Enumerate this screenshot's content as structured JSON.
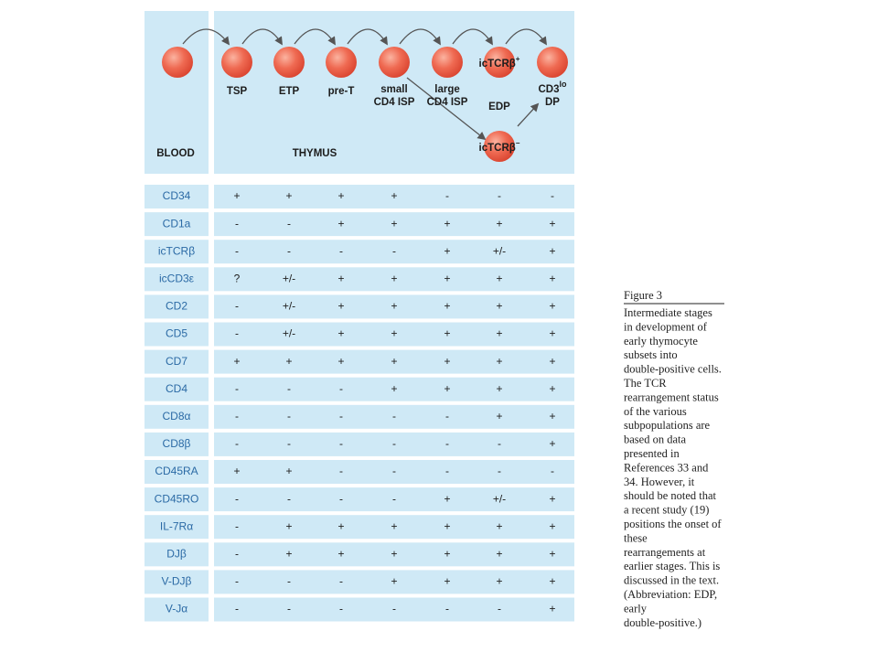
{
  "diagram": {
    "cells": [
      {
        "label": null
      },
      {
        "label": "TSP"
      },
      {
        "label": "ETP"
      },
      {
        "label": "pre-T"
      },
      {
        "label": [
          "small",
          "CD4 ISP"
        ]
      },
      {
        "label": [
          "large",
          "CD4 ISP"
        ]
      },
      {
        "label": "EDP",
        "inner": "icTCRβ",
        "inner_sup": "+"
      },
      {
        "label": [
          "CD3",
          "DP"
        ],
        "label_sup": "lo"
      },
      {
        "inner": "icTCRβ",
        "inner_sup": "−"
      }
    ],
    "blood": "BLOOD",
    "thymus": "THYMUS"
  },
  "table": {
    "rows": [
      {
        "marker": "CD34",
        "values": [
          "+",
          "+",
          "+",
          "+",
          "-",
          "-",
          "-"
        ]
      },
      {
        "marker": "CD1a",
        "values": [
          "-",
          "-",
          "+",
          "+",
          "+",
          "+",
          "+"
        ]
      },
      {
        "marker": "icTCRβ",
        "values": [
          "-",
          "-",
          "-",
          "-",
          "+",
          "+/-",
          "+"
        ]
      },
      {
        "marker": "icCD3ε",
        "values": [
          "?",
          "+/-",
          "+",
          "+",
          "+",
          "+",
          "+"
        ]
      },
      {
        "marker": "CD2",
        "values": [
          "-",
          "+/-",
          "+",
          "+",
          "+",
          "+",
          "+"
        ]
      },
      {
        "marker": "CD5",
        "values": [
          "-",
          "+/-",
          "+",
          "+",
          "+",
          "+",
          "+"
        ]
      },
      {
        "marker": "CD7",
        "values": [
          "+",
          "+",
          "+",
          "+",
          "+",
          "+",
          "+"
        ]
      },
      {
        "marker": "CD4",
        "values": [
          "-",
          "-",
          "-",
          "+",
          "+",
          "+",
          "+"
        ]
      },
      {
        "marker": "CD8α",
        "values": [
          "-",
          "-",
          "-",
          "-",
          "-",
          "+",
          "+"
        ]
      },
      {
        "marker": "CD8β",
        "values": [
          "-",
          "-",
          "-",
          "-",
          "-",
          "-",
          "+"
        ]
      },
      {
        "marker": "CD45RA",
        "values": [
          "+",
          "+",
          "-",
          "-",
          "-",
          "-",
          "-"
        ]
      },
      {
        "marker": "CD45RO",
        "values": [
          "-",
          "-",
          "-",
          "-",
          "+",
          "+/-",
          "+"
        ]
      },
      {
        "marker": "IL-7Rα",
        "values": [
          "-",
          "+",
          "+",
          "+",
          "+",
          "+",
          "+"
        ]
      },
      {
        "marker": "DJβ",
        "values": [
          "-",
          "+",
          "+",
          "+",
          "+",
          "+",
          "+"
        ]
      },
      {
        "marker": "V-DJβ",
        "values": [
          "-",
          "-",
          "-",
          "+",
          "+",
          "+",
          "+"
        ]
      },
      {
        "marker": "V-Jα",
        "values": [
          "-",
          "-",
          "-",
          "-",
          "-",
          "-",
          "+"
        ]
      }
    ]
  },
  "caption": {
    "title": "Figure 3",
    "lines": [
      "Intermediate stages",
      "in development of",
      "early thymocyte",
      "subsets into",
      "double-positive cells.",
      "The TCR",
      "rearrangement status",
      "of the various",
      "subpopulations are",
      "based on data",
      "presented in",
      "References 33 and",
      "34. However, it",
      "should be noted that",
      "a recent study (19)",
      "positions the onset of",
      "these",
      "rearrangements at",
      "earlier stages. This is",
      "discussed in the text.",
      "(Abbreviation: EDP,",
      "early",
      "double-positive.)"
    ]
  }
}
